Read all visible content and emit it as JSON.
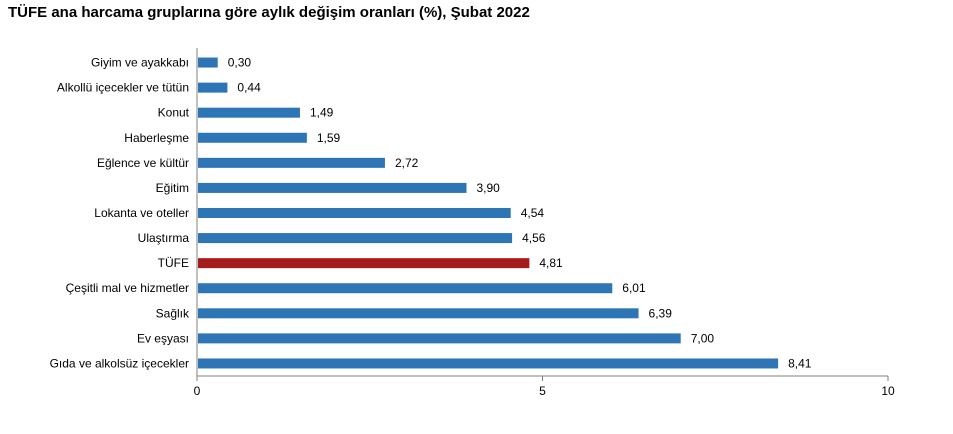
{
  "chart_data": {
    "type": "bar",
    "orientation": "horizontal",
    "title": "TÜFE ana harcama gruplarına göre aylık değişim oranları (%), Şubat 2022",
    "xlabel": "",
    "ylabel": "",
    "xlim": [
      0,
      10
    ],
    "xticks": [
      "0",
      "5",
      "10"
    ],
    "grid": false,
    "categories": [
      "Giyim ve ayakkabı",
      "Alkollü içecekler ve tütün",
      "Konut",
      "Haberleşme",
      "Eğlence ve kültür",
      "Eğitim",
      "Lokanta ve oteller",
      "Ulaştırma",
      "TÜFE",
      "Çeşitli mal ve hizmetler",
      "Sağlık",
      "Ev eşyası",
      "Gıda ve alkolsüz içecekler"
    ],
    "values": [
      0.3,
      0.44,
      1.49,
      1.59,
      2.72,
      3.9,
      4.54,
      4.56,
      4.81,
      6.01,
      6.39,
      7.0,
      8.41
    ],
    "value_labels": [
      "0,30",
      "0,44",
      "1,49",
      "1,59",
      "2,72",
      "3,90",
      "4,54",
      "4,56",
      "4,81",
      "6,01",
      "6,39",
      "7,00",
      "8,41"
    ],
    "highlight_category": "TÜFE",
    "colors": {
      "bar": "#2E75B6",
      "highlight": "#A61C1C",
      "axis": "#808080"
    }
  }
}
